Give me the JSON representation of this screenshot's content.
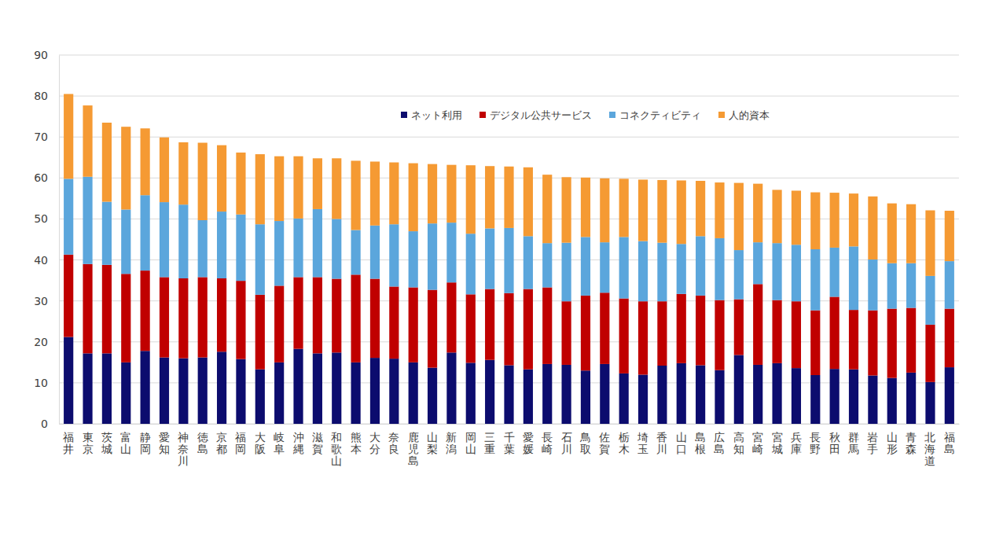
{
  "chart_data": {
    "type": "bar",
    "stacked": true,
    "grid": true,
    "legend": "top",
    "categories": [
      "福井",
      "東京",
      "茨城",
      "富山",
      "静岡",
      "愛知",
      "神奈川",
      "徳島",
      "京都",
      "福岡",
      "大阪",
      "岐阜",
      "沖縄",
      "滋賀",
      "和歌山",
      "熊本",
      "大分",
      "奈良",
      "鹿児島",
      "山梨",
      "新潟",
      "岡山",
      "三重",
      "千葉",
      "愛媛",
      "長崎",
      "石川",
      "鳥取",
      "佐賀",
      "栃木",
      "埼玉",
      "香川",
      "山口",
      "島根",
      "広島",
      "高知",
      "宮崎",
      "宮城",
      "兵庫",
      "長野",
      "秋田",
      "群馬",
      "岩手",
      "山形",
      "青森",
      "北海道",
      "福島"
    ],
    "series": [
      {
        "name": "ネット利用",
        "color": "#0c0c6e",
        "values": [
          21.2,
          17.2,
          17.2,
          15.0,
          17.8,
          16.2,
          16.0,
          16.2,
          17.6,
          15.8,
          13.3,
          15.0,
          18.3,
          17.2,
          17.4,
          15.0,
          16.1,
          15.9,
          15.0,
          13.7,
          17.4,
          14.9,
          15.6,
          14.3,
          13.3,
          14.6,
          14.4,
          13.0,
          14.6,
          12.3,
          12.0,
          14.2,
          14.8,
          14.3,
          13.1,
          16.8,
          14.4,
          14.8,
          13.6,
          11.9,
          13.4,
          13.3,
          11.8,
          11.2,
          12.5,
          10.2,
          13.8
        ]
      },
      {
        "name": "デジタル公共サービス",
        "color": "#c00000",
        "values": [
          20.1,
          21.8,
          21.6,
          21.6,
          19.6,
          19.6,
          19.5,
          19.6,
          17.9,
          19.1,
          18.2,
          18.7,
          17.5,
          18.6,
          18.0,
          21.4,
          19.3,
          17.6,
          18.3,
          19.0,
          17.1,
          16.7,
          17.3,
          17.6,
          19.6,
          18.7,
          15.5,
          18.3,
          17.4,
          18.3,
          17.9,
          15.7,
          16.9,
          17.0,
          17.1,
          13.6,
          19.7,
          15.4,
          16.3,
          15.8,
          17.6,
          14.5,
          15.9,
          16.9,
          15.8,
          14.0,
          14.3
        ]
      },
      {
        "name": "コネクティビティ",
        "color": "#5ba6dc",
        "values": [
          18.5,
          21.3,
          15.4,
          15.7,
          18.4,
          18.3,
          18.0,
          13.9,
          16.3,
          16.2,
          17.2,
          15.8,
          14.3,
          16.6,
          14.6,
          10.9,
          13.0,
          15.2,
          13.7,
          16.2,
          14.6,
          14.8,
          14.8,
          15.9,
          12.9,
          10.8,
          14.3,
          14.3,
          12.3,
          15.0,
          14.7,
          14.3,
          12.2,
          14.5,
          15.1,
          12.0,
          10.2,
          13.9,
          13.8,
          14.9,
          12.0,
          15.5,
          12.4,
          11.1,
          10.9,
          11.9,
          11.6
        ]
      },
      {
        "name": "人的資本",
        "color": "#f59a33",
        "values": [
          20.7,
          17.4,
          19.3,
          20.2,
          16.3,
          15.8,
          15.2,
          18.9,
          16.2,
          15.1,
          17.1,
          15.8,
          15.2,
          12.4,
          14.8,
          16.9,
          15.6,
          15.1,
          16.6,
          14.5,
          14.1,
          16.7,
          15.2,
          15.0,
          16.8,
          16.7,
          16.0,
          14.5,
          15.6,
          14.2,
          15.0,
          15.3,
          15.5,
          13.5,
          13.6,
          16.4,
          14.3,
          13.0,
          13.2,
          13.9,
          13.4,
          12.9,
          15.4,
          14.6,
          14.4,
          16.0,
          12.3
        ]
      }
    ],
    "ylim": [
      0,
      90
    ],
    "yticks": [
      0,
      10,
      20,
      30,
      40,
      50,
      60,
      70,
      80,
      90
    ]
  }
}
